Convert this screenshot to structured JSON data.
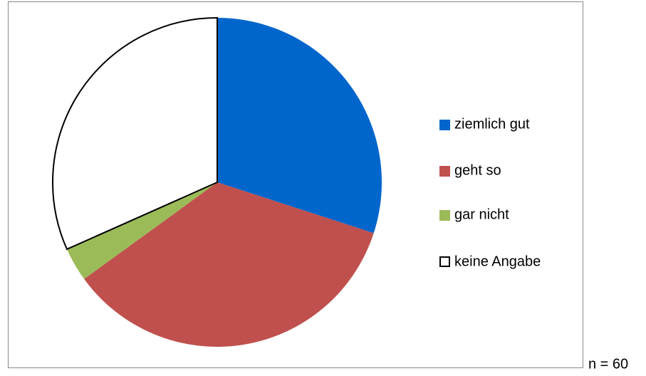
{
  "chart_data": {
    "type": "pie",
    "categories": [
      "ziemlich gut",
      "geht so",
      "gar nicht",
      "keine Angabe"
    ],
    "values": [
      18,
      21,
      2,
      19
    ],
    "colors": [
      "#0066cc",
      "#c0504d",
      "#9bbb59",
      "#ffffff"
    ],
    "annotation": "n = 60"
  }
}
